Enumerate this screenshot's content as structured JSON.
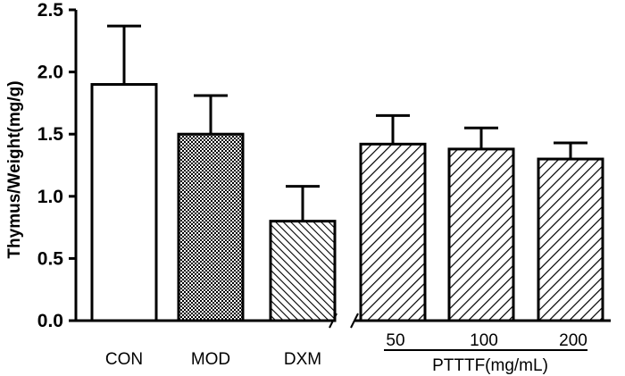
{
  "chart_data": {
    "type": "bar",
    "ylabel": "Thymus/Weight(mg/g)",
    "ylim": [
      0,
      2.5
    ],
    "yticks": [
      "0.0",
      "0.5",
      "1.0",
      "1.5",
      "2.0",
      "2.5"
    ],
    "categories": [
      "CON",
      "MOD",
      "DXM",
      "50",
      "100",
      "200"
    ],
    "values": [
      1.9,
      1.5,
      0.8,
      1.42,
      1.38,
      1.3
    ],
    "errors": [
      0.47,
      0.31,
      0.28,
      0.23,
      0.17,
      0.13
    ],
    "fills": [
      "white",
      "checker",
      "diagonal-dense",
      "diagonal",
      "diagonal",
      "diagonal"
    ],
    "group_label": "PTTTF(mg/mL)",
    "group_categories": [
      "50",
      "100",
      "200"
    ],
    "axis_break_after": "DXM"
  }
}
